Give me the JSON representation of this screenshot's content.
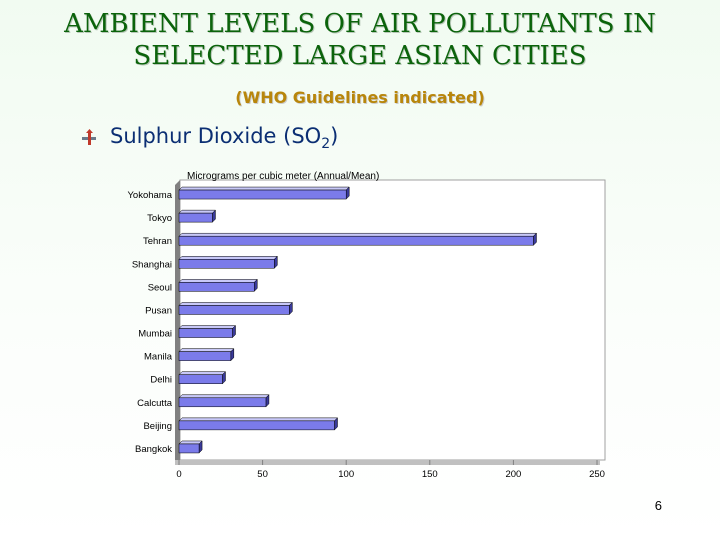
{
  "slide": {
    "title_line1": "AMBIENT LEVELS OF AIR POLLUTANTS IN",
    "title_line2": "SELECTED LARGE ASIAN CITIES",
    "subtitle": "(WHO Guidelines indicated)",
    "bullet_text": "Sulphur Dioxide (SO",
    "bullet_sub": "2",
    "bullet_close": ")",
    "bullet_icon": "arrow-bullet-icon",
    "page_number": "6"
  },
  "colors": {
    "bar_face": "#7b7bea",
    "bar_top": "#c8c8f8",
    "bar_side": "#3a3a9a",
    "title": "#0b630b",
    "subtitle": "#b8860b",
    "bullet": "#0b2e73"
  },
  "chart_data": {
    "type": "bar",
    "orientation": "horizontal",
    "title": "Micrograms per cubic meter (Annual/Mean)",
    "categories": [
      "Yokohama",
      "Tokyo",
      "Tehran",
      "Shanghai",
      "Seoul",
      "Pusan",
      "Mumbai",
      "Manila",
      "Delhi",
      "Calcutta",
      "Beijing",
      "Bangkok"
    ],
    "values": [
      100,
      20,
      212,
      57,
      45,
      66,
      32,
      31,
      26,
      52,
      93,
      12
    ],
    "xlim": [
      0,
      250
    ],
    "xticks": [
      "0",
      "50",
      "100",
      "150",
      "200",
      "250"
    ],
    "grid": false,
    "legend": "none"
  }
}
